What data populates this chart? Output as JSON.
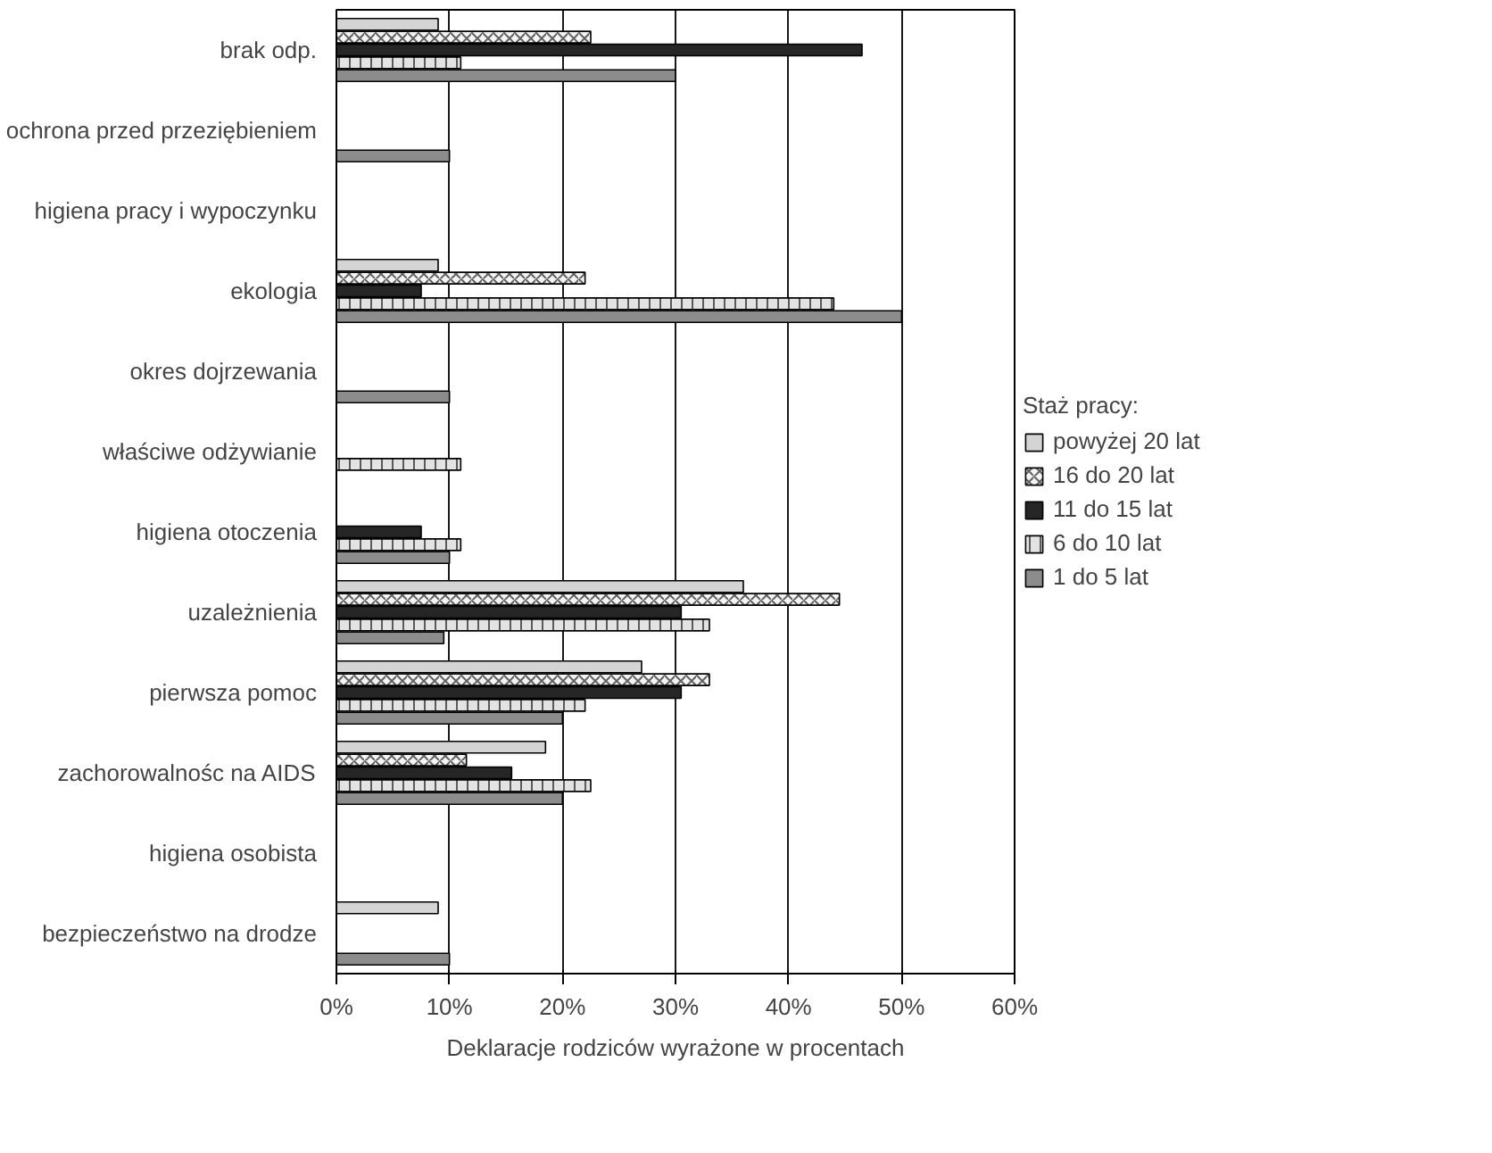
{
  "chart_data": {
    "type": "bar",
    "orientation": "horizontal",
    "xlabel": "Deklaracje rodziców wyrażone w procentach",
    "legend_title": "Staż pracy:",
    "categories": [
      "brak odp.",
      "ochrona przed przeziębieniem",
      "higiena pracy i wypoczynku",
      "ekologia",
      "okres dojrzewania",
      "właściwe odżywianie",
      "higiena otoczenia",
      "uzależnienia",
      "pierwsza pomoc",
      "zachorowalnośc na AIDS",
      "higiena osobista",
      "bezpieczeństwo na drodze"
    ],
    "series": [
      {
        "name": "powyżej 20 lat",
        "color": "#d4d4d4",
        "values": [
          9,
          null,
          null,
          9,
          null,
          null,
          null,
          36,
          27,
          18.5,
          null,
          9
        ]
      },
      {
        "name": "16 do 20 lat",
        "color": "#f4f4f4",
        "values": [
          22.5,
          null,
          null,
          22,
          null,
          null,
          null,
          44.5,
          33,
          11.5,
          null,
          null
        ]
      },
      {
        "name": "11 do 15 lat",
        "color": "#262626",
        "values": [
          46.5,
          null,
          null,
          7.5,
          null,
          null,
          7.5,
          30.5,
          30.5,
          15.5,
          null,
          null
        ]
      },
      {
        "name": "6 do 10 lat",
        "color": "#e3e3e3",
        "values": [
          11,
          null,
          null,
          44,
          null,
          11,
          11,
          33,
          22,
          22.5,
          null,
          null
        ]
      },
      {
        "name": "1 do 5 lat",
        "color": "#8c8c8c",
        "values": [
          30,
          10,
          null,
          50,
          10,
          null,
          10,
          9.5,
          20,
          20,
          null,
          10
        ]
      }
    ],
    "xlim": [
      0,
      60
    ],
    "xticks": [
      {
        "value": 0,
        "label": "0%"
      },
      {
        "value": 10,
        "label": "10%"
      },
      {
        "value": 20,
        "label": "20%"
      },
      {
        "value": 30,
        "label": "30%"
      },
      {
        "value": 40,
        "label": "40%"
      },
      {
        "value": 50,
        "label": "50%"
      },
      {
        "value": 60,
        "label": "60%"
      }
    ],
    "grid": "x",
    "legend": "right"
  }
}
